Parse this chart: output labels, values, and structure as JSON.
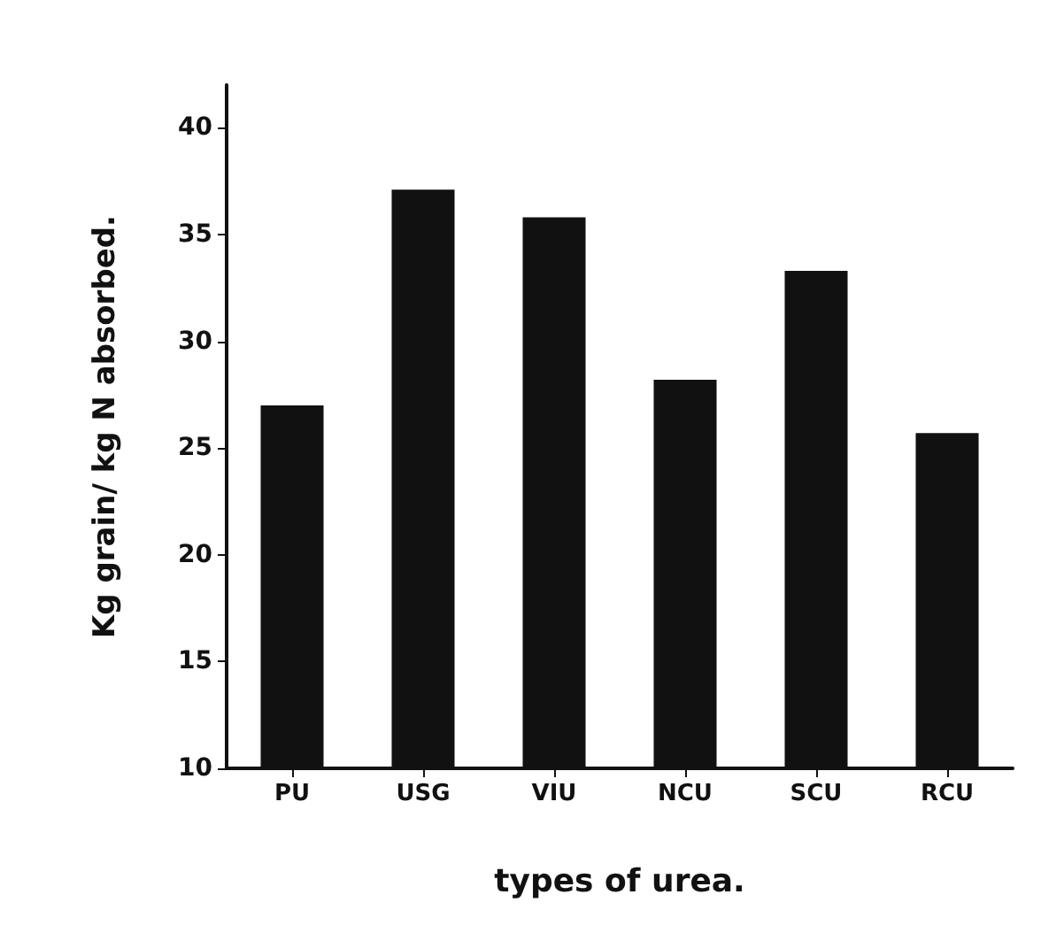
{
  "chart_data": {
    "type": "bar",
    "xlabel": "types of urea.",
    "ylabel": "Kg grain/ kg N absorbed.",
    "categories": [
      "PU",
      "USG",
      "VIU",
      "NCU",
      "SCU",
      "RCU"
    ],
    "values": [
      27.0,
      37.1,
      35.8,
      28.2,
      33.3,
      25.7
    ],
    "color": "#111111",
    "ylim": [
      10,
      42
    ],
    "yticks": [
      10,
      15,
      20,
      25,
      30,
      35,
      40
    ],
    "grid": false
  }
}
